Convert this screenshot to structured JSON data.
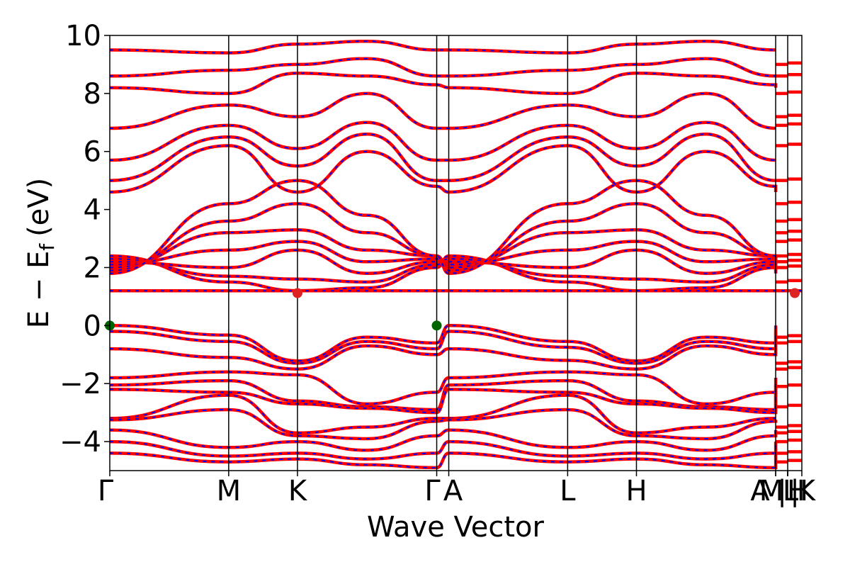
{
  "chart_data": {
    "type": "line",
    "xlabel": "Wave Vector",
    "ylabel_main": "E − E",
    "ylabel_sub": "f",
    "ylabel_unit": "(eV)",
    "ylim": [
      -5,
      10
    ],
    "yticks": [
      {
        "value": 10,
        "label": "10"
      },
      {
        "value": 8,
        "label": "8"
      },
      {
        "value": 6,
        "label": "6"
      },
      {
        "value": 4,
        "label": "4"
      },
      {
        "value": 2,
        "label": "2"
      },
      {
        "value": 0,
        "label": "0"
      },
      {
        "value": -2,
        "label": "−2"
      },
      {
        "value": -4,
        "label": "−4"
      }
    ],
    "xlim": [
      0,
      1
    ],
    "kpoints": [
      {
        "value": 0.0,
        "label": "Γ"
      },
      {
        "value": 0.1718,
        "label": "M"
      },
      {
        "value": 0.2712,
        "label": "K"
      },
      {
        "value": 0.4724,
        "label": "Γ"
      },
      {
        "value": 0.4898,
        "label": "A"
      },
      {
        "value": 0.6616,
        "label": "L"
      },
      {
        "value": 0.761,
        "label": "H"
      },
      {
        "value": 0.9622,
        "label": "A"
      },
      {
        "value": 0.9622,
        "label": "M"
      },
      {
        "value": 0.9796,
        "label": "|"
      },
      {
        "value": 0.9796,
        "label": "L"
      },
      {
        "value": 0.9796,
        "label": "|"
      },
      {
        "value": 0.9796,
        "label": "H"
      },
      {
        "value": 1.0,
        "label": "K"
      }
    ],
    "series_colors": {
      "spin_up": "#ff0000",
      "spin_down": "#0000ff"
    },
    "vbm_points": [
      {
        "x": 0.0,
        "y": 0.0
      },
      {
        "x": 0.4724,
        "y": 0.0
      }
    ],
    "cbm_points": [
      {
        "x": 0.2712,
        "y": 1.12
      },
      {
        "x": 0.9898,
        "y": 1.12
      }
    ],
    "vbm_color": "#006400",
    "cbm_color": "#dd2222",
    "bands": {
      "flat": [
        1.2
      ],
      "valence": [
        [
          0.0,
          -0.33,
          -1.22,
          -0.4,
          -0.6,
          -0.0,
          -0.55,
          -1.22,
          -0.4,
          -0.6,
          -0.0
        ],
        [
          -0.2,
          -0.55,
          -1.3,
          -0.55,
          -0.8,
          -0.2,
          -0.75,
          -1.3,
          -0.55,
          -0.8,
          -0.2
        ],
        [
          -0.8,
          -1.1,
          -1.5,
          -0.7,
          -1.0,
          -0.8,
          -1.2,
          -1.5,
          -0.7,
          -1.0,
          -0.8
        ],
        [
          -1.8,
          -1.6,
          -1.7,
          -2.7,
          -2.3,
          -1.8,
          -1.6,
          -1.7,
          -2.7,
          -2.3,
          -1.8
        ],
        [
          -2.05,
          -1.9,
          -2.6,
          -2.8,
          -2.9,
          -2.05,
          -1.9,
          -2.6,
          -2.8,
          -2.9,
          -2.05
        ],
        [
          -2.2,
          -2.3,
          -2.7,
          -2.85,
          -3.0,
          -2.2,
          -2.3,
          -2.7,
          -2.85,
          -3.0,
          -2.2
        ],
        [
          -3.2,
          -2.4,
          -3.7,
          -3.5,
          -3.2,
          -3.2,
          -2.4,
          -3.7,
          -3.5,
          -3.2,
          -3.2
        ],
        [
          -3.25,
          -2.9,
          -3.8,
          -3.9,
          -3.3,
          -3.25,
          -2.9,
          -3.8,
          -3.9,
          -3.3,
          -3.25
        ],
        [
          -3.6,
          -4.2,
          -4.0,
          -4.3,
          -3.8,
          -3.6,
          -4.2,
          -4.0,
          -4.3,
          -3.8,
          -3.6
        ],
        [
          -4.0,
          -4.5,
          -4.4,
          -4.6,
          -4.4,
          -4.0,
          -4.5,
          -4.4,
          -4.6,
          -4.4,
          -4.0
        ],
        [
          -4.4,
          -4.7,
          -4.6,
          -4.8,
          -4.9,
          -4.4,
          -4.7,
          -4.6,
          -4.8,
          -4.9,
          -4.4
        ]
      ],
      "conduction": [
        [
          2.4,
          1.5,
          1.2,
          1.3,
          2.0,
          2.4,
          1.5,
          1.2,
          1.3,
          2.0,
          2.4
        ],
        [
          2.3,
          1.7,
          1.6,
          1.5,
          2.1,
          2.3,
          1.7,
          1.6,
          1.5,
          2.1,
          2.3
        ],
        [
          2.2,
          2.0,
          2.6,
          1.8,
          2.2,
          2.2,
          2.0,
          2.6,
          1.8,
          2.2,
          2.2
        ],
        [
          2.1,
          2.6,
          2.9,
          2.2,
          2.3,
          2.1,
          2.6,
          2.9,
          2.2,
          2.3,
          2.1
        ],
        [
          2.0,
          3.2,
          3.3,
          2.6,
          2.4,
          2.0,
          3.2,
          3.3,
          2.6,
          2.4,
          2.0
        ],
        [
          1.9,
          3.6,
          4.2,
          3.2,
          2.4,
          1.9,
          3.6,
          4.2,
          3.2,
          2.4,
          1.9
        ],
        [
          1.8,
          4.2,
          5.0,
          3.8,
          2.4,
          1.8,
          4.2,
          5.0,
          3.8,
          2.4,
          1.8
        ],
        [
          4.6,
          6.2,
          4.6,
          6.0,
          4.8,
          4.6,
          6.2,
          4.6,
          6.0,
          4.8,
          4.6
        ],
        [
          5.0,
          6.5,
          5.5,
          6.6,
          5.0,
          5.0,
          6.5,
          5.5,
          6.6,
          5.0,
          5.0
        ],
        [
          5.7,
          6.9,
          6.1,
          7.0,
          5.7,
          5.7,
          6.9,
          6.1,
          7.0,
          5.7,
          5.7
        ],
        [
          6.8,
          7.6,
          7.2,
          8.0,
          6.8,
          6.8,
          7.6,
          7.2,
          8.0,
          6.8,
          6.8
        ],
        [
          8.2,
          8.0,
          8.7,
          8.6,
          8.3,
          8.2,
          8.0,
          8.7,
          8.6,
          8.3,
          8.2
        ],
        [
          8.6,
          8.8,
          9.0,
          9.2,
          8.6,
          8.6,
          8.8,
          9.0,
          9.2,
          8.6,
          8.6
        ],
        [
          9.5,
          9.4,
          9.7,
          9.8,
          9.5,
          9.5,
          9.4,
          9.7,
          9.8,
          9.5,
          9.5
        ]
      ]
    }
  }
}
